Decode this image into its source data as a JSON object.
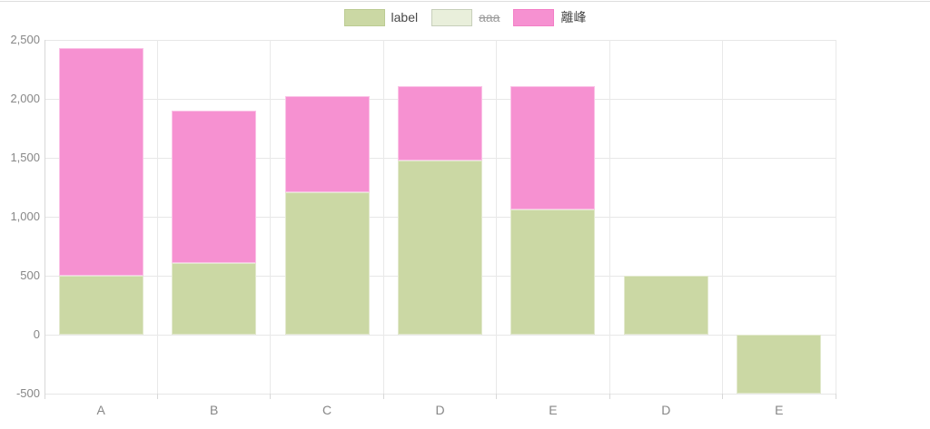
{
  "page": {
    "background": "#ffffff",
    "top_border_color": "#dedede"
  },
  "legend": {
    "position": "top",
    "items": [
      {
        "label": "label",
        "fill": "#cbd8a4",
        "border": "#bccb93",
        "struck": false
      },
      {
        "label": "aaa",
        "fill": "#e9efdb",
        "border": "#c7cfba",
        "struck": true
      },
      {
        "label": "離峰",
        "fill": "#f691d1",
        "border": "#f37fc6",
        "struck": false
      }
    ]
  },
  "chart_data": {
    "type": "bar",
    "stacked": true,
    "title": "",
    "xlabel": "",
    "ylabel": "",
    "categories": [
      "A",
      "B",
      "C",
      "D",
      "E",
      "D",
      "E"
    ],
    "series": [
      {
        "name": "label",
        "color": "#cbd8a4",
        "hidden": false,
        "values": [
          500,
          610,
          1210,
          1480,
          1060,
          500,
          -500
        ]
      },
      {
        "name": "aaa",
        "color": "#e9efdb",
        "hidden": true,
        "values": [
          null,
          null,
          null,
          null,
          null,
          null,
          null
        ]
      },
      {
        "name": "離峰",
        "color": "#f691d1",
        "hidden": false,
        "values": [
          1930,
          1290,
          810,
          630,
          1050,
          0,
          0
        ]
      }
    ],
    "stack_totals": [
      2430,
      1900,
      2020,
      2110,
      2110,
      500,
      -500
    ],
    "ylim": [
      -500,
      2500
    ],
    "ytick_step": 500,
    "ytick_labels": [
      "2,500",
      "2,000",
      "1,500",
      "1,000",
      "500",
      "0",
      "-500"
    ],
    "grid": true,
    "legend_position": "top",
    "axis_text_color": "#878787",
    "grid_color": "#e7e7e7"
  }
}
